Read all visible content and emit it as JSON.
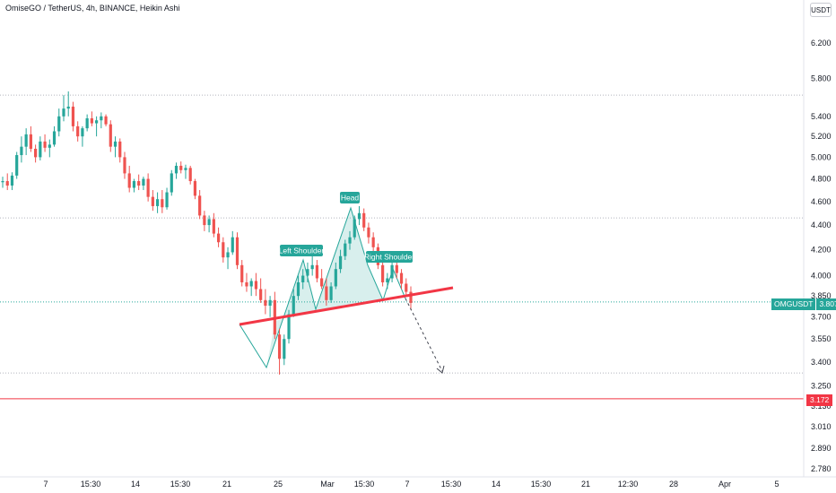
{
  "header": {
    "title": "OmiseGO / TetherUS, 4h, BINANCE, Heikin Ashi",
    "currency": "USDT"
  },
  "colors": {
    "up": "#26a69a",
    "down": "#ef5350",
    "neckline": "#f23645",
    "pattern_fill": "#26a69a",
    "support_line": "#f23645",
    "grid_dotted": "#b2b5be"
  },
  "symbol_tag": {
    "symbol": "OMGUSDT",
    "price": "3.807"
  },
  "support_tag": {
    "price": "3.172"
  },
  "chart_data": {
    "type": "candlestick",
    "scale": "log",
    "y_ticks": [
      "6.200",
      "5.800",
      "5.400",
      "5.200",
      "5.000",
      "4.800",
      "4.600",
      "4.400",
      "4.200",
      "4.000",
      "3.850",
      "3.700",
      "3.550",
      "3.400",
      "3.250",
      "3.130",
      "3.010",
      "2.890",
      "2.780"
    ],
    "y_tick_values": [
      6.2,
      5.8,
      5.4,
      5.2,
      5.0,
      4.8,
      4.6,
      4.4,
      4.2,
      4.0,
      3.85,
      3.7,
      3.55,
      3.4,
      3.25,
      3.13,
      3.01,
      2.89,
      2.78
    ],
    "x_ticks": [
      "7",
      "15:30",
      "14",
      "15:30",
      "21",
      "15:30",
      "25",
      "Mar",
      "15:30",
      "7",
      "15:30",
      "14",
      "15:30",
      "21",
      "12:30",
      "28",
      "Apr",
      "5"
    ],
    "horizontal_levels": [
      5.62,
      4.46,
      3.807,
      3.33
    ],
    "support_level": 3.172,
    "annotations": [
      "Left Shoulder",
      "Head",
      "Right Shoulder"
    ],
    "candles_ohlc": [
      [
        4.77,
        4.82,
        4.72,
        4.78
      ],
      [
        4.78,
        4.85,
        4.7,
        4.74
      ],
      [
        4.74,
        4.86,
        4.7,
        4.83
      ],
      [
        4.83,
        5.05,
        4.8,
        5.02
      ],
      [
        5.02,
        5.2,
        4.95,
        5.1
      ],
      [
        5.1,
        5.28,
        5.02,
        5.22
      ],
      [
        5.22,
        5.3,
        5.05,
        5.08
      ],
      [
        5.08,
        5.12,
        4.95,
        5.0
      ],
      [
        5.0,
        5.2,
        4.97,
        5.15
      ],
      [
        5.15,
        5.22,
        5.05,
        5.09
      ],
      [
        5.09,
        5.17,
        5.0,
        5.12
      ],
      [
        5.12,
        5.3,
        5.1,
        5.25
      ],
      [
        5.25,
        5.48,
        5.2,
        5.4
      ],
      [
        5.4,
        5.62,
        5.35,
        5.48
      ],
      [
        5.48,
        5.66,
        5.4,
        5.5
      ],
      [
        5.5,
        5.55,
        5.25,
        5.3
      ],
      [
        5.3,
        5.35,
        5.15,
        5.2
      ],
      [
        5.2,
        5.3,
        5.1,
        5.28
      ],
      [
        5.28,
        5.42,
        5.25,
        5.38
      ],
      [
        5.38,
        5.45,
        5.3,
        5.33
      ],
      [
        5.33,
        5.4,
        5.2,
        5.36
      ],
      [
        5.36,
        5.44,
        5.28,
        5.4
      ],
      [
        5.4,
        5.42,
        5.3,
        5.32
      ],
      [
        5.32,
        5.36,
        5.05,
        5.1
      ],
      [
        5.1,
        5.2,
        5.0,
        5.15
      ],
      [
        5.15,
        5.18,
        4.95,
        5.0
      ],
      [
        5.0,
        5.05,
        4.8,
        4.85
      ],
      [
        4.85,
        4.92,
        4.68,
        4.72
      ],
      [
        4.72,
        4.8,
        4.68,
        4.78
      ],
      [
        4.78,
        4.84,
        4.7,
        4.74
      ],
      [
        4.74,
        4.82,
        4.7,
        4.8
      ],
      [
        4.8,
        4.85,
        4.6,
        4.64
      ],
      [
        4.64,
        4.7,
        4.52,
        4.56
      ],
      [
        4.56,
        4.68,
        4.5,
        4.62
      ],
      [
        4.62,
        4.7,
        4.5,
        4.55
      ],
      [
        4.55,
        4.72,
        4.53,
        4.68
      ],
      [
        4.68,
        4.88,
        4.65,
        4.85
      ],
      [
        4.85,
        4.95,
        4.8,
        4.92
      ],
      [
        4.92,
        4.96,
        4.85,
        4.88
      ],
      [
        4.88,
        4.93,
        4.8,
        4.9
      ],
      [
        4.9,
        4.92,
        4.75,
        4.78
      ],
      [
        4.78,
        4.8,
        4.62,
        4.65
      ],
      [
        4.65,
        4.7,
        4.45,
        4.48
      ],
      [
        4.48,
        4.52,
        4.35,
        4.4
      ],
      [
        4.4,
        4.48,
        4.34,
        4.45
      ],
      [
        4.45,
        4.5,
        4.3,
        4.33
      ],
      [
        4.33,
        4.38,
        4.22,
        4.26
      ],
      [
        4.26,
        4.3,
        4.1,
        4.14
      ],
      [
        4.14,
        4.22,
        4.05,
        4.18
      ],
      [
        4.18,
        4.35,
        4.16,
        4.3
      ],
      [
        4.3,
        4.34,
        4.05,
        4.08
      ],
      [
        4.08,
        4.12,
        3.92,
        3.95
      ],
      [
        3.95,
        4.02,
        3.88,
        3.92
      ],
      [
        3.92,
        3.98,
        3.85,
        3.96
      ],
      [
        3.96,
        4.02,
        3.85,
        3.9
      ],
      [
        3.9,
        3.98,
        3.8,
        3.82
      ],
      [
        3.82,
        3.9,
        3.72,
        3.78
      ],
      [
        3.78,
        3.85,
        3.7,
        3.82
      ],
      [
        3.82,
        3.88,
        3.55,
        3.58
      ],
      [
        3.58,
        3.62,
        3.32,
        3.42
      ],
      [
        3.42,
        3.58,
        3.38,
        3.55
      ],
      [
        3.55,
        3.75,
        3.52,
        3.72
      ],
      [
        3.72,
        3.9,
        3.7,
        3.85
      ],
      [
        3.85,
        4.0,
        3.82,
        3.95
      ],
      [
        3.95,
        4.05,
        3.9,
        4.0
      ],
      [
        4.0,
        4.1,
        3.95,
        4.05
      ],
      [
        4.05,
        4.15,
        4.0,
        4.08
      ],
      [
        4.08,
        4.12,
        3.95,
        3.98
      ],
      [
        3.98,
        4.05,
        3.9,
        3.92
      ],
      [
        3.92,
        3.98,
        3.78,
        3.82
      ],
      [
        3.82,
        3.95,
        3.8,
        3.92
      ],
      [
        3.92,
        4.1,
        3.9,
        4.05
      ],
      [
        4.05,
        4.2,
        4.02,
        4.15
      ],
      [
        4.15,
        4.28,
        4.12,
        4.25
      ],
      [
        4.25,
        4.35,
        4.2,
        4.3
      ],
      [
        4.3,
        4.48,
        4.28,
        4.45
      ],
      [
        4.45,
        4.56,
        4.4,
        4.5
      ],
      [
        4.5,
        4.54,
        4.35,
        4.38
      ],
      [
        4.38,
        4.42,
        4.25,
        4.3
      ],
      [
        4.3,
        4.34,
        4.18,
        4.22
      ],
      [
        4.22,
        4.25,
        4.05,
        4.08
      ],
      [
        4.08,
        4.12,
        3.92,
        3.95
      ],
      [
        3.95,
        4.02,
        3.9,
        3.98
      ],
      [
        3.98,
        4.1,
        3.95,
        4.08
      ],
      [
        4.08,
        4.12,
        3.98,
        4.02
      ],
      [
        4.02,
        4.05,
        3.9,
        3.94
      ],
      [
        3.94,
        3.98,
        3.85,
        3.88
      ],
      [
        3.88,
        3.92,
        3.75,
        3.8
      ]
    ]
  }
}
